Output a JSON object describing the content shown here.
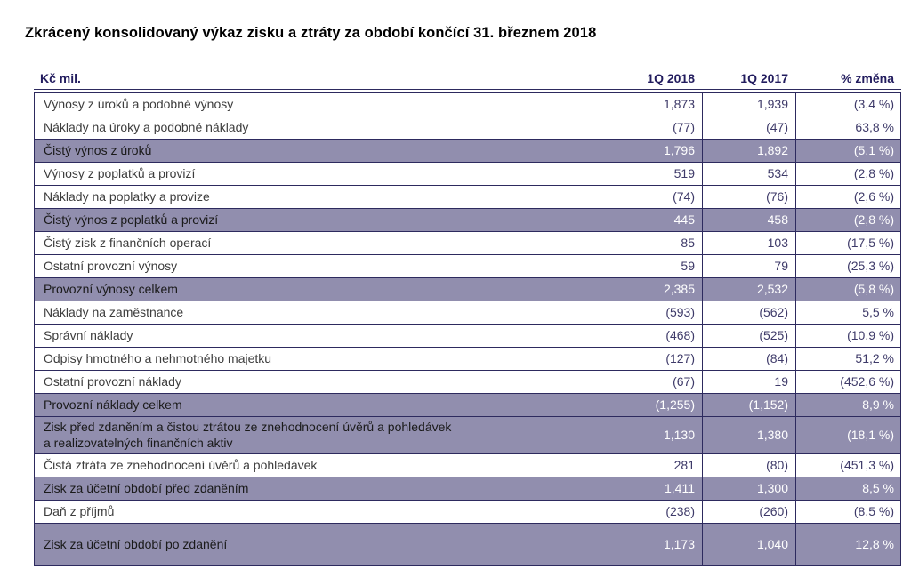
{
  "title": "Zkrácený konsolidovaný výkaz zisku a ztráty za období končící 31. březnem 2018",
  "colors": {
    "c-border": "#2d2a5e",
    "c-header": "#221c5e",
    "c-label": "#3d3d3d",
    "c-num": "#3e3a69",
    "c-hl-bg": "#918eae",
    "c-hl-label": "#1a1a1a",
    "c-hl-num": "#ffffff"
  },
  "table": {
    "columns": [
      "Kč mil.",
      "1Q 2018",
      "1Q 2017",
      "% změna"
    ],
    "rows": [
      {
        "label": "Výnosy z úroků a podobné výnosy",
        "q1_2018": "1,873",
        "q1_2017": "1,939",
        "change": "(3,4 %)",
        "highlight": false
      },
      {
        "label": "Náklady na úroky a podobné náklady",
        "q1_2018": "(77)",
        "q1_2017": "(47)",
        "change": "63,8 %",
        "highlight": false
      },
      {
        "label": "Čistý výnos z úroků",
        "q1_2018": "1,796",
        "q1_2017": "1,892",
        "change": "(5,1 %)",
        "highlight": true
      },
      {
        "label": "Výnosy z poplatků a provizí",
        "q1_2018": "519",
        "q1_2017": "534",
        "change": "(2,8 %)",
        "highlight": false
      },
      {
        "label": "Náklady na poplatky a provize",
        "q1_2018": "(74)",
        "q1_2017": "(76)",
        "change": "(2,6 %)",
        "highlight": false
      },
      {
        "label": "Čistý výnos z poplatků a provizí",
        "q1_2018": "445",
        "q1_2017": "458",
        "change": "(2,8 %)",
        "highlight": true
      },
      {
        "label": "Čistý zisk z finančních operací",
        "q1_2018": "85",
        "q1_2017": "103",
        "change": "(17,5 %)",
        "highlight": false
      },
      {
        "label": "Ostatní provozní výnosy",
        "q1_2018": "59",
        "q1_2017": "79",
        "change": "(25,3 %)",
        "highlight": false
      },
      {
        "label": "Provozní výnosy celkem",
        "q1_2018": "2,385",
        "q1_2017": "2,532",
        "change": "(5,8 %)",
        "highlight": true
      },
      {
        "label": "Náklady na zaměstnance",
        "q1_2018": "(593)",
        "q1_2017": "(562)",
        "change": "5,5 %",
        "highlight": false
      },
      {
        "label": "Správní náklady",
        "q1_2018": "(468)",
        "q1_2017": "(525)",
        "change": "(10,9 %)",
        "highlight": false
      },
      {
        "label": "Odpisy hmotného a nehmotného majetku",
        "q1_2018": "(127)",
        "q1_2017": "(84)",
        "change": "51,2 %",
        "highlight": false
      },
      {
        "label": "Ostatní provozní náklady",
        "q1_2018": "(67)",
        "q1_2017": "19",
        "change": "(452,6 %)",
        "highlight": false
      },
      {
        "label": "Provozní náklady celkem",
        "q1_2018": "(1,255)",
        "q1_2017": "(1,152)",
        "change": "8,9 %",
        "highlight": true
      },
      {
        "label": "Zisk před zdaněním a čistou ztrátou ze znehodnocení úvěrů a pohledávek\na realizovatelných finančních aktiv",
        "q1_2018": "1,130",
        "q1_2017": "1,380",
        "change": "(18,1 %)",
        "highlight": true
      },
      {
        "label": "Čistá ztráta ze znehodnocení úvěrů a pohledávek",
        "q1_2018": "281",
        "q1_2017": "(80)",
        "change": "(451,3 %)",
        "highlight": false
      },
      {
        "label": "Zisk za účetní období před zdaněním",
        "q1_2018": "1,411",
        "q1_2017": "1,300",
        "change": "8,5 %",
        "highlight": true
      },
      {
        "label": "Daň z příjmů",
        "q1_2018": "(238)",
        "q1_2017": "(260)",
        "change": "(8,5 %)",
        "highlight": false
      },
      {
        "label": "Zisk za účetní období po zdanění",
        "q1_2018": "1,173",
        "q1_2017": "1,040",
        "change": "12,8 %",
        "highlight": true,
        "tall": true
      }
    ]
  }
}
